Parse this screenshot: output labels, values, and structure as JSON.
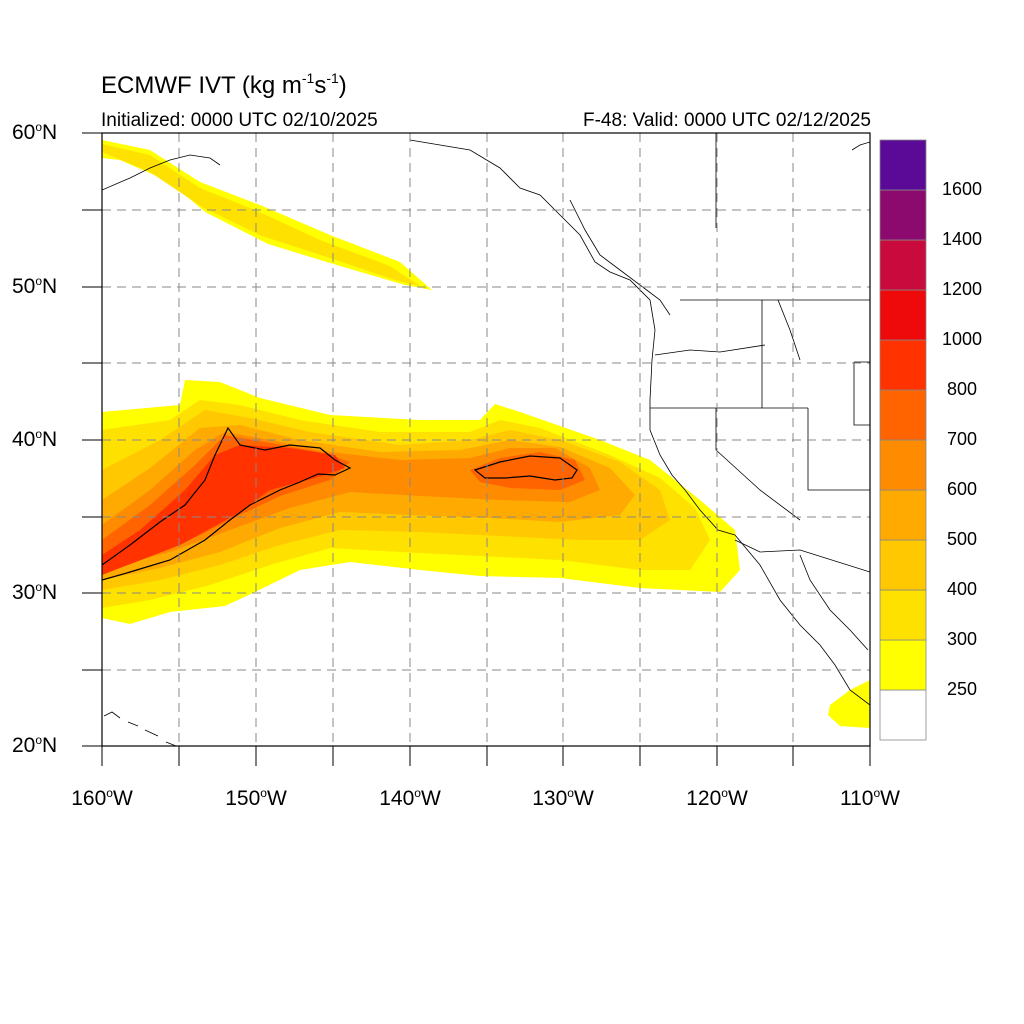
{
  "title": {
    "prefix": "ECMWF IVT (kg m",
    "exp1": "-1",
    "mid": "s",
    "exp2": "-1",
    "suffix": ")"
  },
  "initialized": "Initialized: 0000 UTC 02/10/2025",
  "valid": "F-48: Valid: 0000 UTC 02/12/2025",
  "lat_labels": [
    {
      "deg": "60",
      "unit": "o",
      "hem": "N"
    },
    {
      "deg": "50",
      "unit": "o",
      "hem": "N"
    },
    {
      "deg": "40",
      "unit": "o",
      "hem": "N"
    },
    {
      "deg": "30",
      "unit": "o",
      "hem": "N"
    },
    {
      "deg": "20",
      "unit": "o",
      "hem": "N"
    }
  ],
  "lon_labels": [
    {
      "deg": "160",
      "unit": "o",
      "hem": "W"
    },
    {
      "deg": "150",
      "unit": "o",
      "hem": "W"
    },
    {
      "deg": "140",
      "unit": "o",
      "hem": "W"
    },
    {
      "deg": "130",
      "unit": "o",
      "hem": "W"
    },
    {
      "deg": "120",
      "unit": "o",
      "hem": "W"
    },
    {
      "deg": "110",
      "unit": "o",
      "hem": "W"
    }
  ],
  "colorbar": {
    "colors": [
      "#ffffff",
      "#ffff00",
      "#ffe100",
      "#ffc800",
      "#ffaa00",
      "#ff8c00",
      "#ff6400",
      "#ff3200",
      "#ee0a0a",
      "#c80a3c",
      "#8c0a6e",
      "#5a0a96"
    ],
    "labels": [
      "250",
      "300",
      "400",
      "500",
      "600",
      "700",
      "800",
      "1000",
      "1200",
      "1400",
      "1600"
    ]
  },
  "map": {
    "lon_range": [
      -160,
      -110
    ],
    "lat_range": [
      20,
      60
    ],
    "grid": "dashed",
    "contour_level": "1000"
  }
}
